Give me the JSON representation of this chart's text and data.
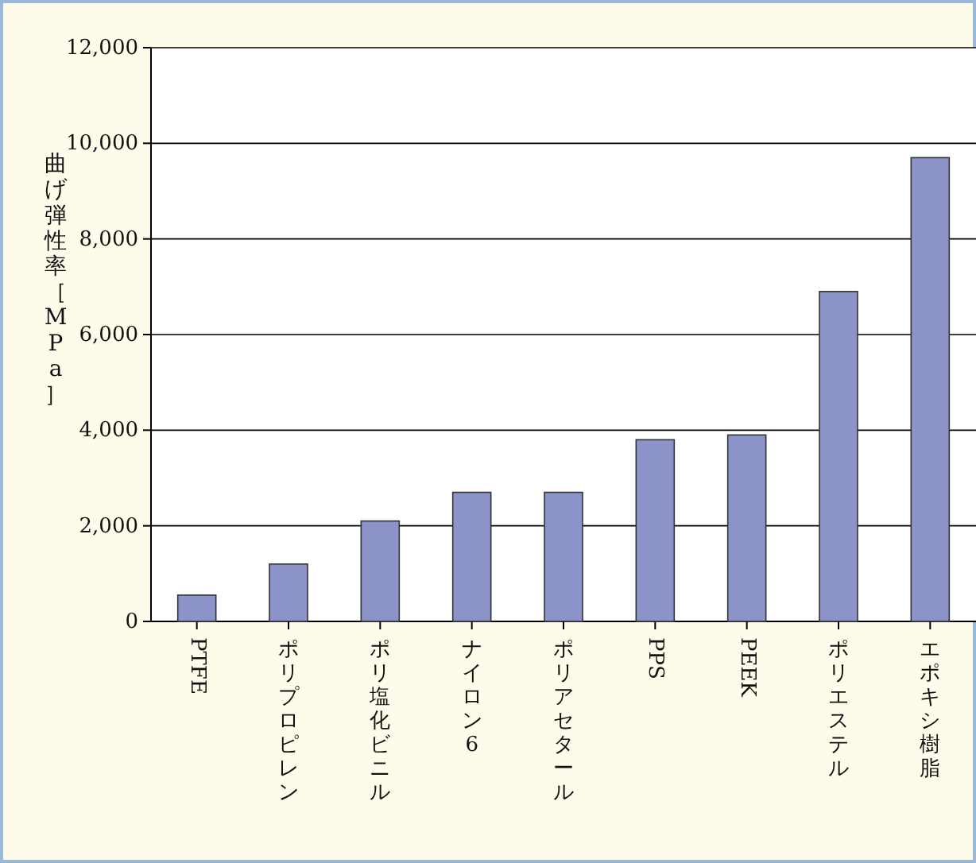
{
  "chart_data": {
    "type": "bar",
    "ylabel": "曲げ弾性率［MPa］",
    "categories": [
      "PTFE",
      "ポリプロピレン",
      "ポリ塩化ビニル",
      "ナイロン6",
      "ポリアセタール",
      "PPS",
      "PEEK",
      "ポリエステル",
      "エポキシ樹脂"
    ],
    "values": [
      550,
      1200,
      2100,
      2700,
      2700,
      3800,
      3900,
      6900,
      9700
    ],
    "color": "#8b93c8",
    "ylim": [
      0,
      12000
    ],
    "yticks": [
      {
        "value": 0,
        "label": "0"
      },
      {
        "value": 2000,
        "label": "2,000"
      },
      {
        "value": 4000,
        "label": "4,000"
      },
      {
        "value": 6000,
        "label": "6,000"
      },
      {
        "value": 8000,
        "label": "8,000"
      },
      {
        "value": 10000,
        "label": "10,000"
      },
      {
        "value": 12000,
        "label": "12,000"
      }
    ],
    "grid": "y"
  }
}
